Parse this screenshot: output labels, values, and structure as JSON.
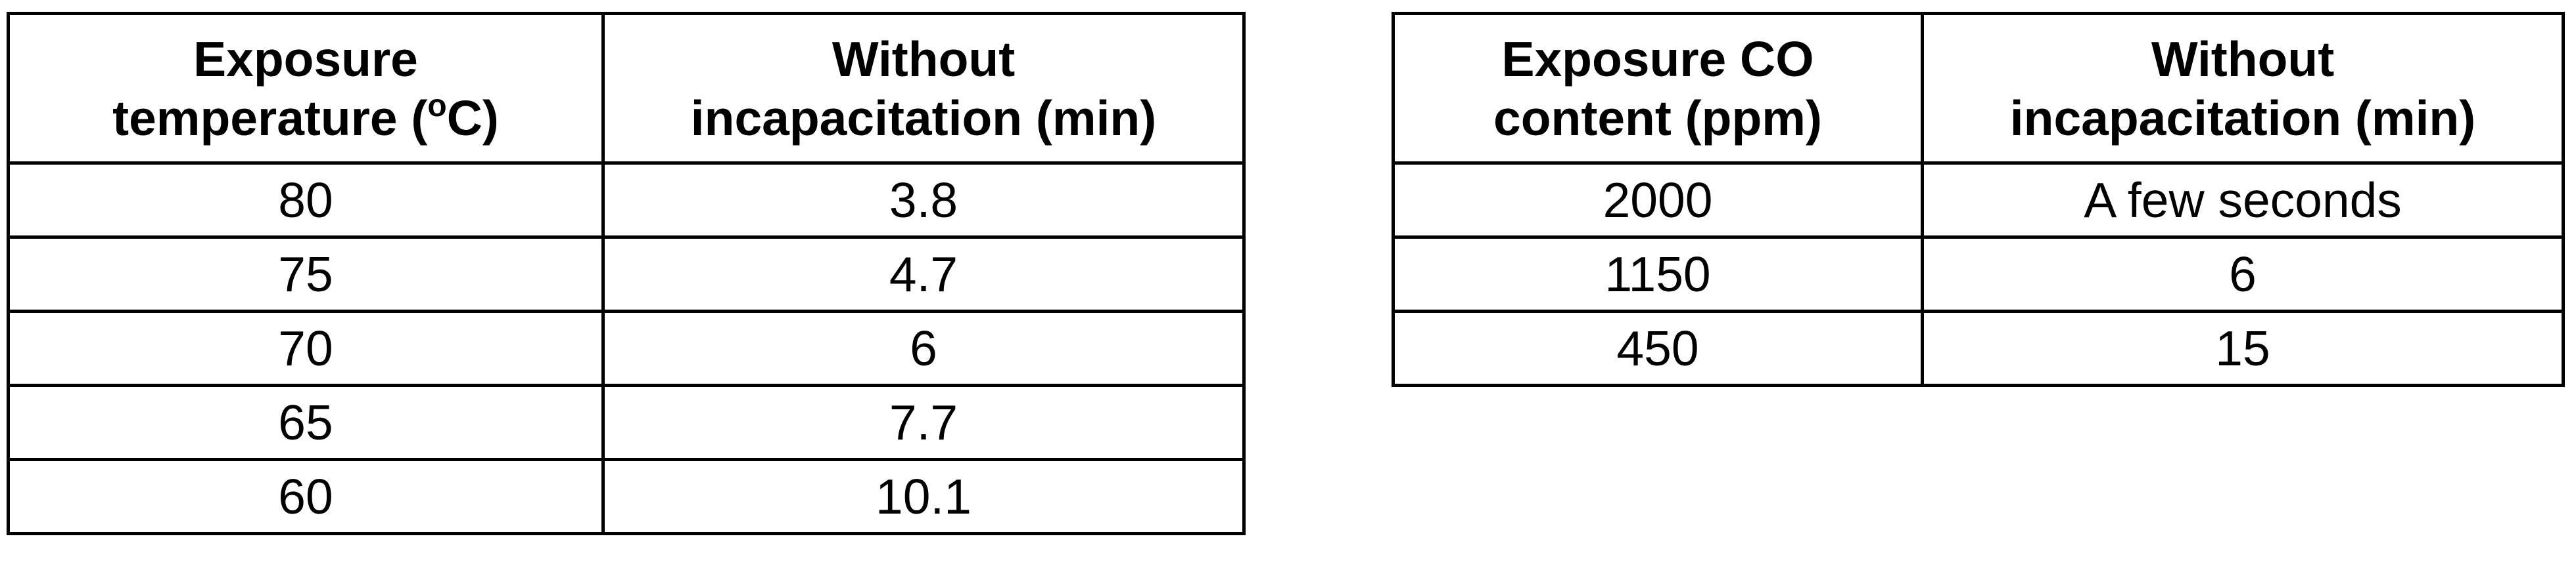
{
  "temperature_table": {
    "headers": [
      {
        "line1": "Exposure",
        "line2_before_sup": "temperature (",
        "sup": "o",
        "line2_after_sup": "C)"
      },
      {
        "line1": "Without",
        "line2": "incapacitation (min)"
      }
    ],
    "rows": [
      {
        "temperature": "80",
        "minutes": "3.8"
      },
      {
        "temperature": "75",
        "minutes": "4.7"
      },
      {
        "temperature": "70",
        "minutes": "6"
      },
      {
        "temperature": "65",
        "minutes": "7.7"
      },
      {
        "temperature": "60",
        "minutes": "10.1"
      }
    ]
  },
  "co_table": {
    "headers": [
      {
        "line1": "Exposure CO",
        "line2": "content (ppm)"
      },
      {
        "line1": "Without",
        "line2": "incapacitation (min)"
      }
    ],
    "rows": [
      {
        "co_ppm": "2000",
        "minutes": "A few seconds"
      },
      {
        "co_ppm": "1150",
        "minutes": "6"
      },
      {
        "co_ppm": "450",
        "minutes": "15"
      }
    ]
  }
}
